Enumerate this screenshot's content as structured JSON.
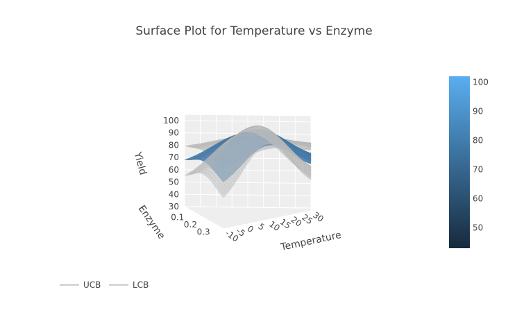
{
  "chart_data": {
    "type": "surface",
    "title": "Surface Plot for Temperature vs Enzyme",
    "xlabel": "Temperature",
    "ylabel": "Enzyme",
    "zlabel": "Yield",
    "x_ticks": [
      "-10",
      "-5",
      "0",
      "5",
      "10",
      "15",
      "20",
      "25",
      "30"
    ],
    "y_ticks": [
      "0.1",
      "0.2",
      "0.3"
    ],
    "z_ticks": [
      "30",
      "40",
      "50",
      "60",
      "70",
      "80",
      "90",
      "100"
    ],
    "xlim": [
      -10,
      30
    ],
    "ylim": [
      0.05,
      0.35
    ],
    "zlim": [
      30,
      105
    ],
    "colorbar": {
      "range": [
        43,
        102
      ],
      "ticks": [
        "50",
        "60",
        "70",
        "80",
        "90",
        "100"
      ],
      "colors": [
        "#172a3d",
        "#5aaef0"
      ]
    },
    "series": [
      {
        "name": "UCB",
        "color": "#c8c8c8",
        "base": 76,
        "temp_amp": 10,
        "enz_amp": 6
      },
      {
        "name": "",
        "color": "#4b85b5",
        "base": 60,
        "temp_amp": 28,
        "enz_amp": 10
      },
      {
        "name": "LCB",
        "color": "#c8c8c8",
        "base": 43,
        "temp_amp": 45,
        "enz_amp": 13
      }
    ],
    "temp_peak": 10,
    "enzyme_peak": 0.2,
    "legend": {
      "position": "bottom-left",
      "items": [
        "UCB",
        "LCB"
      ]
    }
  }
}
